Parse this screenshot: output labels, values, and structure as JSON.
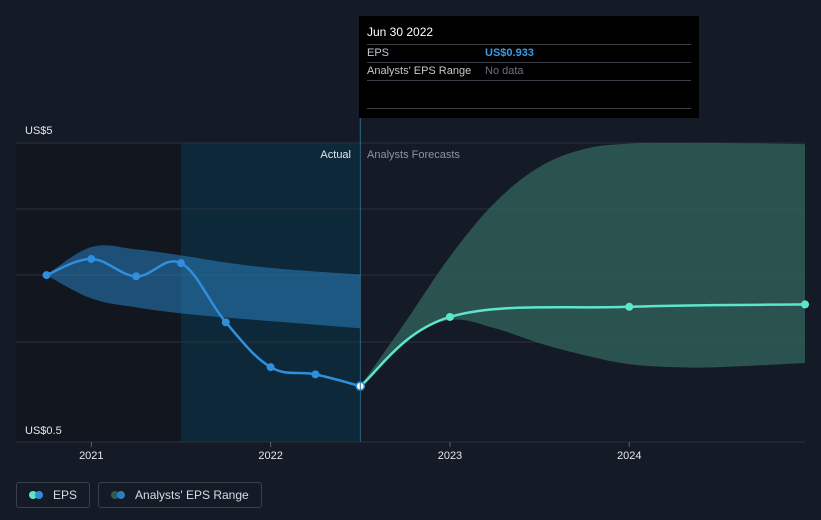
{
  "chart_data": {
    "type": "line",
    "y_top_label": "US$5",
    "y_bottom_label": "US$0.5",
    "ylim": [
      0.5,
      5
    ],
    "xlim": [
      2020.58,
      2024.98
    ],
    "x_ticks": [
      {
        "value": 2021,
        "label": "2021"
      },
      {
        "value": 2022,
        "label": "2022"
      },
      {
        "value": 2023,
        "label": "2023"
      },
      {
        "value": 2024,
        "label": "2024"
      }
    ],
    "divider_x": 2022.5,
    "actual_label": "Actual",
    "forecast_label": "Analysts Forecasts",
    "series": [
      {
        "name": "EPS",
        "kind": "actual",
        "color": "#2f8fdc",
        "points": [
          [
            2020.75,
            2.79
          ],
          [
            2021.0,
            3.06
          ],
          [
            2021.25,
            2.77
          ],
          [
            2021.5,
            2.99
          ],
          [
            2021.75,
            2.0
          ],
          [
            2022.0,
            1.25
          ],
          [
            2022.25,
            1.13
          ],
          [
            2022.5,
            0.933
          ]
        ]
      },
      {
        "name": "EPS forecast",
        "kind": "forecast",
        "color": "#5ee6cc",
        "points": [
          [
            2022.5,
            0.933
          ],
          [
            2023.0,
            2.09
          ],
          [
            2024.0,
            2.26
          ],
          [
            2024.98,
            2.3
          ]
        ]
      }
    ],
    "past_range": {
      "color": "#2a7fc0",
      "x": [
        2020.75,
        2021.0,
        2021.25,
        2021.5,
        2021.75,
        2022.0,
        2022.25,
        2022.5
      ],
      "upper": [
        2.79,
        3.26,
        3.22,
        3.12,
        3.0,
        2.91,
        2.85,
        2.8
      ],
      "lower": [
        2.79,
        2.4,
        2.25,
        2.15,
        2.08,
        2.02,
        1.96,
        1.9
      ]
    },
    "forecast_range": {
      "color": "#2e5c57",
      "x": [
        2022.5,
        2022.75,
        2023.0,
        2023.25,
        2023.5,
        2023.75,
        2024.0,
        2024.25,
        2024.5,
        2024.98
      ],
      "upper": [
        0.933,
        2.0,
        3.1,
        4.0,
        4.6,
        4.9,
        4.99,
        5.0,
        5.0,
        4.98
      ],
      "lower": [
        0.933,
        1.7,
        2.04,
        1.9,
        1.65,
        1.45,
        1.3,
        1.25,
        1.25,
        1.32
      ]
    },
    "highlight": {
      "x": 2022.5,
      "y": 0.933
    }
  },
  "tooltip": {
    "date": "Jun 30 2022",
    "eps_label": "EPS",
    "eps_value": "US$0.933",
    "range_label": "Analysts' EPS Range",
    "range_value": "No data"
  },
  "legend": {
    "eps_label": "EPS",
    "range_label": "Analysts' EPS Range",
    "eps_colors": [
      "#5ee6cc",
      "#2f8fdc"
    ],
    "range_colors": [
      "#2e5c57",
      "#2a7fc0"
    ]
  }
}
